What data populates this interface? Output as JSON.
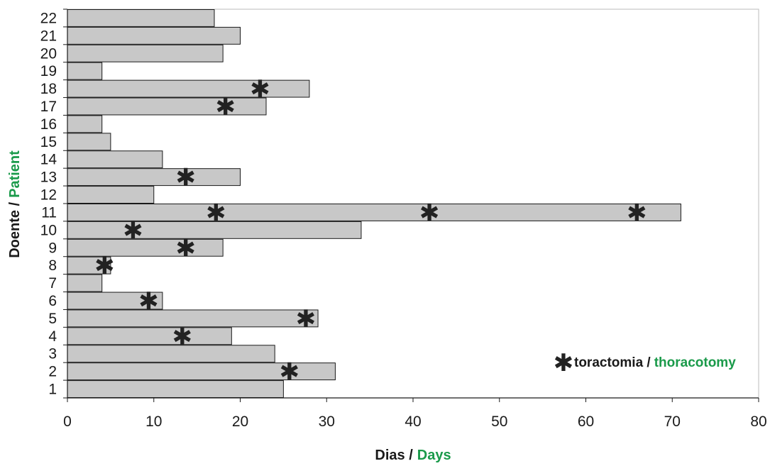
{
  "chart_data": {
    "type": "bar",
    "orientation": "horizontal",
    "categories": [
      "1",
      "2",
      "3",
      "4",
      "5",
      "6",
      "7",
      "8",
      "9",
      "10",
      "11",
      "12",
      "13",
      "14",
      "15",
      "16",
      "17",
      "18",
      "19",
      "20",
      "21",
      "22"
    ],
    "values": [
      25,
      31,
      24,
      19,
      29,
      11,
      4,
      5,
      18,
      34,
      71,
      10,
      20,
      11,
      5,
      4,
      23,
      28,
      4,
      18,
      20,
      17
    ],
    "thoracotomy_days": {
      "2": [
        25.7
      ],
      "4": [
        13.3
      ],
      "5": [
        27.6
      ],
      "6": [
        9.4
      ],
      "8": [
        4.3
      ],
      "9": [
        13.7
      ],
      "10": [
        7.6
      ],
      "11": [
        17.2,
        41.9,
        65.9
      ],
      "13": [
        13.7
      ],
      "17": [
        18.3
      ],
      "18": [
        22.3
      ]
    },
    "xlabel": {
      "part1": "Dias /",
      "part2": "Days"
    },
    "ylabel": {
      "part1": "Doente /",
      "part2": "Patient"
    },
    "xlim": [
      0,
      80
    ],
    "xticks": [
      0,
      10,
      20,
      30,
      40,
      50,
      60,
      70,
      80
    ],
    "legend": {
      "marker": "✱",
      "part1": "toractomia /",
      "part2": "thoracotomy",
      "placement": "bottom-right"
    },
    "colors": {
      "bar_fill": "#c8c8c8",
      "bar_stroke": "#1a1a1a",
      "accent_green": "#1a9a4a",
      "text": "#1a1a1a"
    },
    "grid": false
  }
}
